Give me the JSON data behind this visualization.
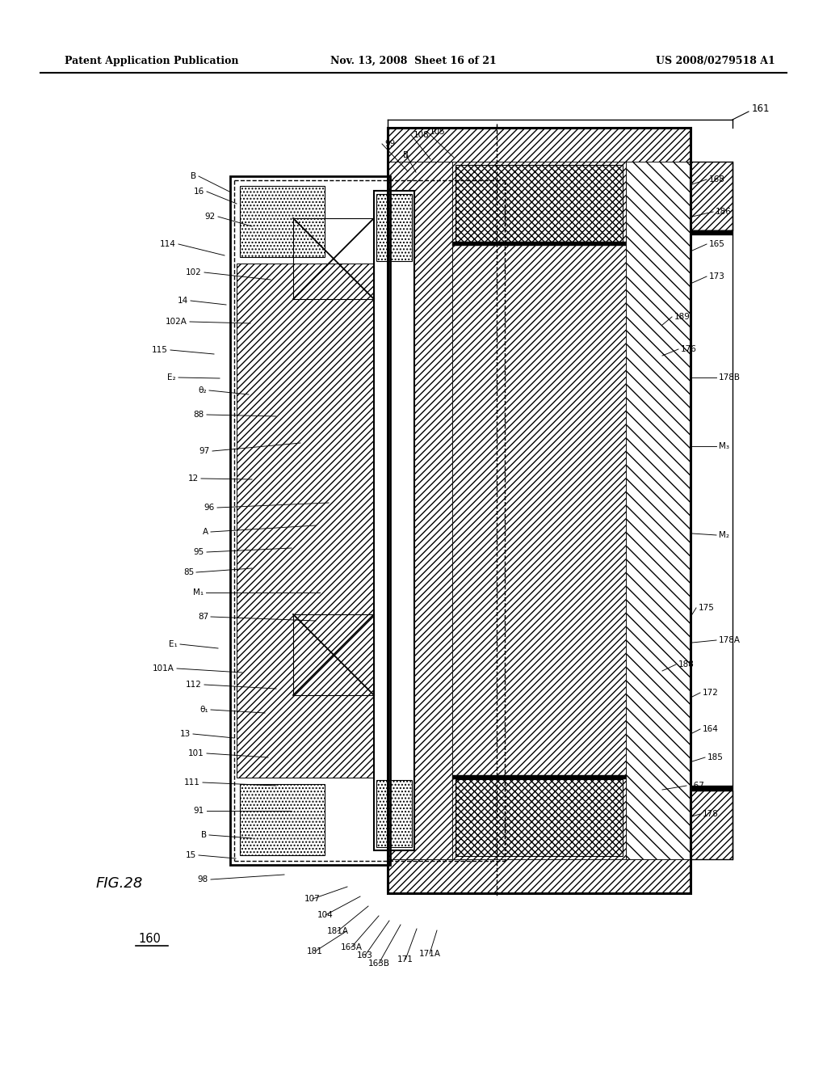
{
  "header_left": "Patent Application Publication",
  "header_center": "Nov. 13, 2008  Sheet 16 of 21",
  "header_right": "US 2008/0279518 A1",
  "fig_label": "FIG.28",
  "fig_number": "160",
  "bg": "#ffffff"
}
